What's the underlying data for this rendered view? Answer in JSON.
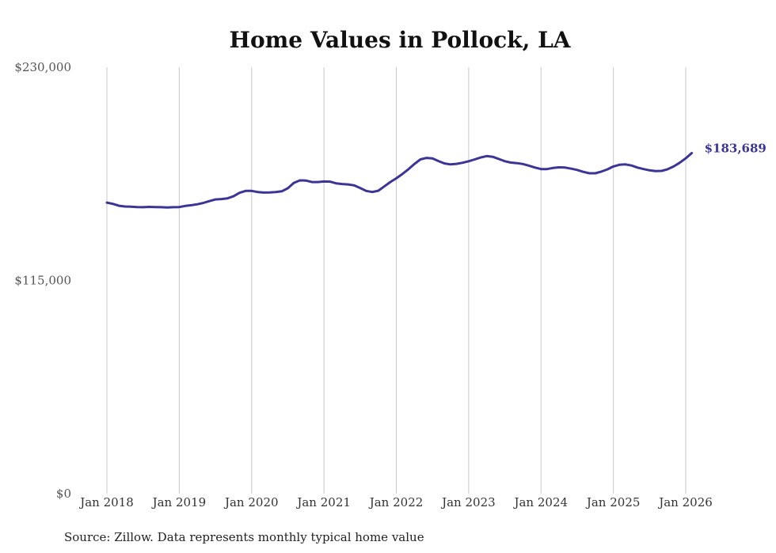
{
  "chart_data": {
    "type": "line",
    "title": "Home Values in Pollock, LA",
    "xlabel": "",
    "ylabel": "",
    "ylim": [
      0,
      230000
    ],
    "y_ticks": [
      {
        "value": 0,
        "label": "$0"
      },
      {
        "value": 115000,
        "label": "$115,000"
      },
      {
        "value": 230000,
        "label": "$230,000"
      }
    ],
    "x_ticks": [
      {
        "value": 2018.0,
        "label": "Jan 2018"
      },
      {
        "value": 2019.0,
        "label": "Jan 2019"
      },
      {
        "value": 2020.0,
        "label": "Jan 2020"
      },
      {
        "value": 2021.0,
        "label": "Jan 2021"
      },
      {
        "value": 2022.0,
        "label": "Jan 2022"
      },
      {
        "value": 2023.0,
        "label": "Jan 2023"
      },
      {
        "value": 2024.0,
        "label": "Jan 2024"
      },
      {
        "value": 2025.0,
        "label": "Jan 2025"
      },
      {
        "value": 2026.0,
        "label": "Jan 2026"
      }
    ],
    "xlim": [
      2018.0,
      2026.0
    ],
    "grid": "vertical",
    "color": "#3b3595",
    "end_label": "$183,689",
    "series": [
      {
        "x": [
          2018.0,
          2018.083,
          2018.167,
          2018.25,
          2018.333,
          2018.417,
          2018.5,
          2018.583,
          2018.667,
          2018.75,
          2018.833,
          2018.917,
          2019.0,
          2019.083,
          2019.167,
          2019.25,
          2019.333,
          2019.417,
          2019.5,
          2019.583,
          2019.667,
          2019.75,
          2019.833,
          2019.917,
          2020.0,
          2020.083,
          2020.167,
          2020.25,
          2020.333,
          2020.417,
          2020.5,
          2020.583,
          2020.667,
          2020.75,
          2020.833,
          2020.917,
          2021.0,
          2021.083,
          2021.167,
          2021.25,
          2021.333,
          2021.417,
          2021.5,
          2021.583,
          2021.667,
          2021.75,
          2021.833,
          2021.917,
          2022.0,
          2022.083,
          2022.167,
          2022.25,
          2022.333,
          2022.417,
          2022.5,
          2022.583,
          2022.667,
          2022.75,
          2022.833,
          2022.917,
          2023.0,
          2023.083,
          2023.167,
          2023.25,
          2023.333,
          2023.417,
          2023.5,
          2023.583,
          2023.667,
          2023.75,
          2023.833,
          2023.917,
          2024.0,
          2024.083,
          2024.167,
          2024.25,
          2024.333,
          2024.417,
          2024.5,
          2024.583,
          2024.667,
          2024.75,
          2024.833,
          2024.917,
          2025.0,
          2025.083,
          2025.167,
          2025.25,
          2025.333,
          2025.417,
          2025.5,
          2025.583,
          2025.667,
          2025.75,
          2025.833,
          2025.917,
          2026.0,
          2026.083
        ],
        "y": [
          157000,
          156300,
          155300,
          154900,
          154800,
          154600,
          154500,
          154700,
          154600,
          154500,
          154400,
          154500,
          154600,
          155200,
          155600,
          156100,
          156800,
          157800,
          158700,
          158900,
          159300,
          160400,
          162300,
          163300,
          163300,
          162700,
          162400,
          162500,
          162700,
          163100,
          164700,
          167600,
          169000,
          168900,
          168100,
          168100,
          168400,
          168300,
          167400,
          167000,
          166800,
          166300,
          164900,
          163300,
          162700,
          163400,
          165700,
          168100,
          170100,
          172400,
          175000,
          177800,
          180300,
          181100,
          180800,
          179400,
          178100,
          177600,
          177900,
          178500,
          179300,
          180300,
          181300,
          182100,
          181700,
          180500,
          179300,
          178600,
          178300,
          177800,
          176900,
          175900,
          175100,
          175100,
          175700,
          176000,
          175900,
          175300,
          174600,
          173600,
          172800,
          172800,
          173700,
          174900,
          176500,
          177400,
          177600,
          177000,
          175900,
          175100,
          174400,
          174000,
          174100,
          175000,
          176500,
          178500,
          180900,
          183689
        ]
      }
    ]
  },
  "footer": {
    "source": "Source: Zillow. Data represents monthly typical home value"
  }
}
